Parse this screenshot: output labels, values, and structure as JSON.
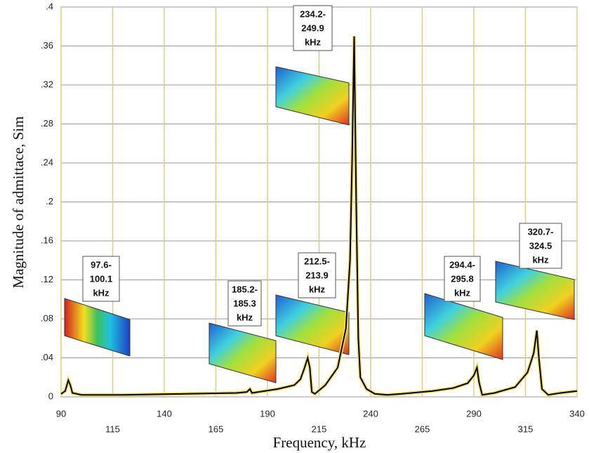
{
  "chart_data": {
    "type": "line",
    "x_label": "Frequency, kHz",
    "y_label": "Magnitude of admittace, Sim",
    "x": [
      90,
      92,
      93.5,
      94.5,
      95.5,
      100,
      120,
      150,
      175,
      180,
      181.5,
      182.5,
      195,
      203,
      206,
      208,
      209.5,
      210.5,
      211.5,
      213,
      218,
      224,
      228,
      230,
      231,
      232,
      233,
      234,
      235,
      238,
      242,
      248,
      255,
      270,
      280,
      287,
      290,
      291.5,
      292.5,
      294,
      300,
      310,
      316,
      319,
      320.5,
      321.5,
      323,
      326,
      332,
      340
    ],
    "series": [
      {
        "color": "#000000",
        "values": [
          0.003,
          0.006,
          0.017,
          0.012,
          0.004,
          0.002,
          0.002,
          0.003,
          0.004,
          0.005,
          0.008,
          0.004,
          0.008,
          0.012,
          0.018,
          0.03,
          0.04,
          0.03,
          0.005,
          0.003,
          0.012,
          0.03,
          0.07,
          0.14,
          0.24,
          0.37,
          0.2,
          0.06,
          0.02,
          0.008,
          0.003,
          0.002,
          0.003,
          0.006,
          0.009,
          0.014,
          0.022,
          0.03,
          0.015,
          0.002,
          0.004,
          0.01,
          0.025,
          0.045,
          0.068,
          0.04,
          0.008,
          0.002,
          0.004,
          0.006
        ]
      }
    ],
    "xlim": [
      90,
      340
    ],
    "xticks": [
      90,
      115,
      140,
      165,
      190,
      215,
      240,
      265,
      290,
      315,
      340
    ],
    "ylim": [
      0,
      0.4
    ],
    "yticks": [
      0,
      {
        "value": 0.04,
        "label": ".04"
      },
      {
        "value": 0.08,
        "label": ".08"
      },
      {
        "value": 0.12,
        "label": ".12"
      },
      {
        "value": 0.16,
        "label": ".16"
      },
      {
        "value": 0.2,
        "label": ".2"
      },
      {
        "value": 0.24,
        "label": ".24"
      },
      {
        "value": 0.28,
        "label": ".28"
      },
      {
        "value": 0.32,
        "label": ".32"
      },
      {
        "value": 0.36,
        "label": ".36"
      },
      {
        "value": 0.4,
        "label": ".4"
      }
    ],
    "grid": true,
    "annotations": [
      [
        "97.6-",
        "100.1",
        "kHz"
      ],
      [
        "185.2-",
        "185.3",
        "kHz"
      ],
      [
        "212.5-",
        "213.9",
        "kHz"
      ],
      [
        "234.2-",
        "249.9",
        "kHz"
      ],
      [
        "294.4-",
        "295.8",
        "kHz"
      ],
      [
        "320.7-",
        "324.5",
        "kHz"
      ]
    ]
  }
}
